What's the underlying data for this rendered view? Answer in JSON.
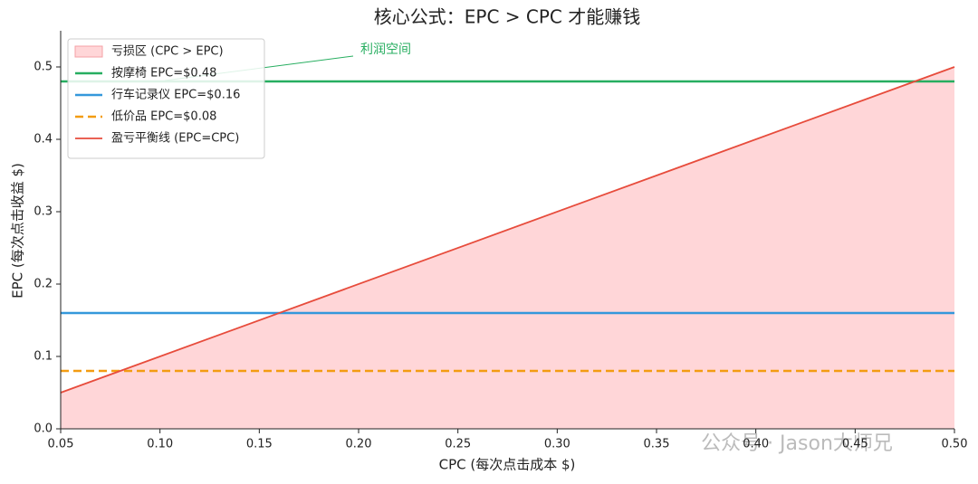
{
  "chart_data": {
    "type": "line",
    "title": "核心公式：EPC > CPC 才能赚钱",
    "xlabel": "CPC (每次点击成本 $)",
    "ylabel": "EPC (每次点击收益 $)",
    "annotation": "利润空间",
    "watermark": "公众号 · Jason大师兄",
    "x": [
      0.05,
      0.5
    ],
    "series": [
      {
        "name": "亏损区 (CPC > EPC)",
        "color": "#ffd6d8",
        "kind": "area",
        "values": [
          0.05,
          0.5
        ]
      },
      {
        "name": "按摩椅 EPC=$0.48",
        "color": "#27ae60",
        "style": "solid",
        "values": [
          0.48,
          0.48
        ]
      },
      {
        "name": "行车记录仪 EPC=$0.16",
        "color": "#3498db",
        "style": "solid",
        "values": [
          0.16,
          0.16
        ]
      },
      {
        "name": "低价品 EPC=$0.08",
        "color": "#f39c12",
        "style": "dashed",
        "values": [
          0.08,
          0.08
        ]
      },
      {
        "name": "盈亏平衡线 (EPC=CPC)",
        "color": "#e74c3c",
        "style": "solid",
        "values": [
          0.05,
          0.5
        ]
      }
    ],
    "xlim": [
      0.05,
      0.5
    ],
    "ylim": [
      0,
      0.55
    ],
    "xticks": [
      {
        "value": 0.05,
        "label": "0.05"
      },
      {
        "value": 0.1,
        "label": "0.10"
      },
      {
        "value": 0.15,
        "label": "0.15"
      },
      {
        "value": 0.2,
        "label": "0.20"
      },
      {
        "value": 0.25,
        "label": "0.25"
      },
      {
        "value": 0.3,
        "label": "0.30"
      },
      {
        "value": 0.35,
        "label": "0.35"
      },
      {
        "value": 0.4,
        "label": "0.40"
      },
      {
        "value": 0.45,
        "label": "0.45"
      },
      {
        "value": 0.5,
        "label": "0.50"
      }
    ],
    "yticks": [
      {
        "value": 0,
        "label": "0.0"
      },
      {
        "value": 0.1,
        "label": "0.1"
      },
      {
        "value": 0.2,
        "label": "0.2"
      },
      {
        "value": 0.3,
        "label": "0.3"
      },
      {
        "value": 0.4,
        "label": "0.4"
      },
      {
        "value": 0.5,
        "label": "0.5"
      }
    ],
    "legend": "upper left"
  }
}
